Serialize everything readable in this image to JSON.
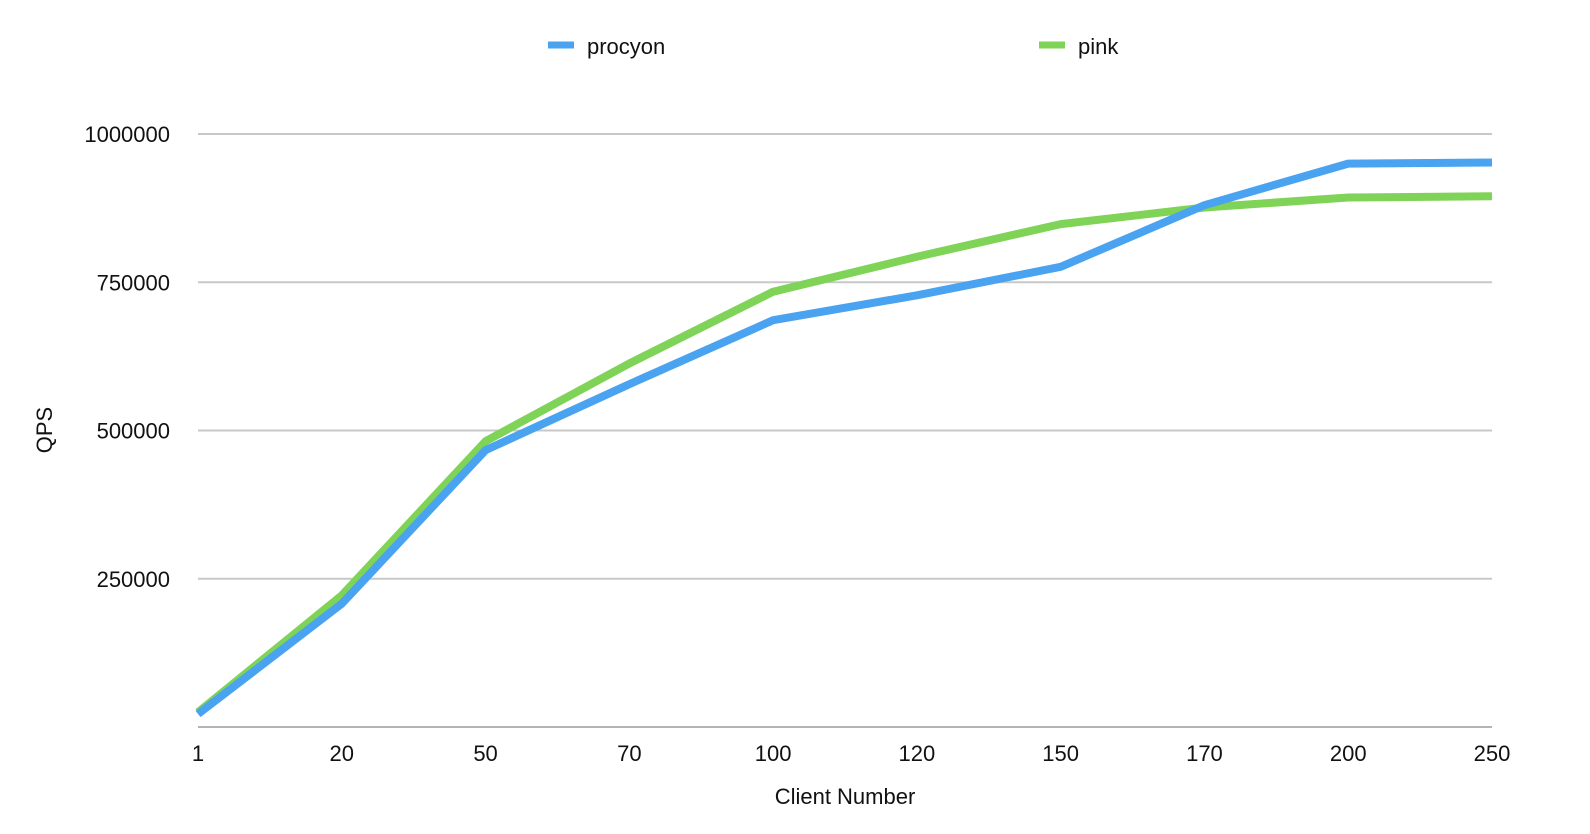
{
  "chart_data": {
    "type": "line",
    "title": "",
    "xlabel": "Client Number",
    "ylabel": "QPS",
    "categories": [
      "1",
      "20",
      "50",
      "70",
      "100",
      "120",
      "150",
      "170",
      "200",
      "250"
    ],
    "yticks": [
      "250000",
      "500000",
      "750000",
      "1000000"
    ],
    "ylim": [
      0,
      1000000
    ],
    "grid": true,
    "legend_position": "top",
    "series": [
      {
        "name": "procyon",
        "color": "#4aa3f0",
        "values": [
          22000,
          208000,
          467000,
          578000,
          686000,
          728000,
          776000,
          880000,
          950000,
          952000
        ]
      },
      {
        "name": "pink",
        "color": "#7fd356",
        "values": [
          25000,
          222000,
          482000,
          613000,
          734000,
          793000,
          848000,
          876000,
          893000,
          895000
        ]
      }
    ]
  }
}
